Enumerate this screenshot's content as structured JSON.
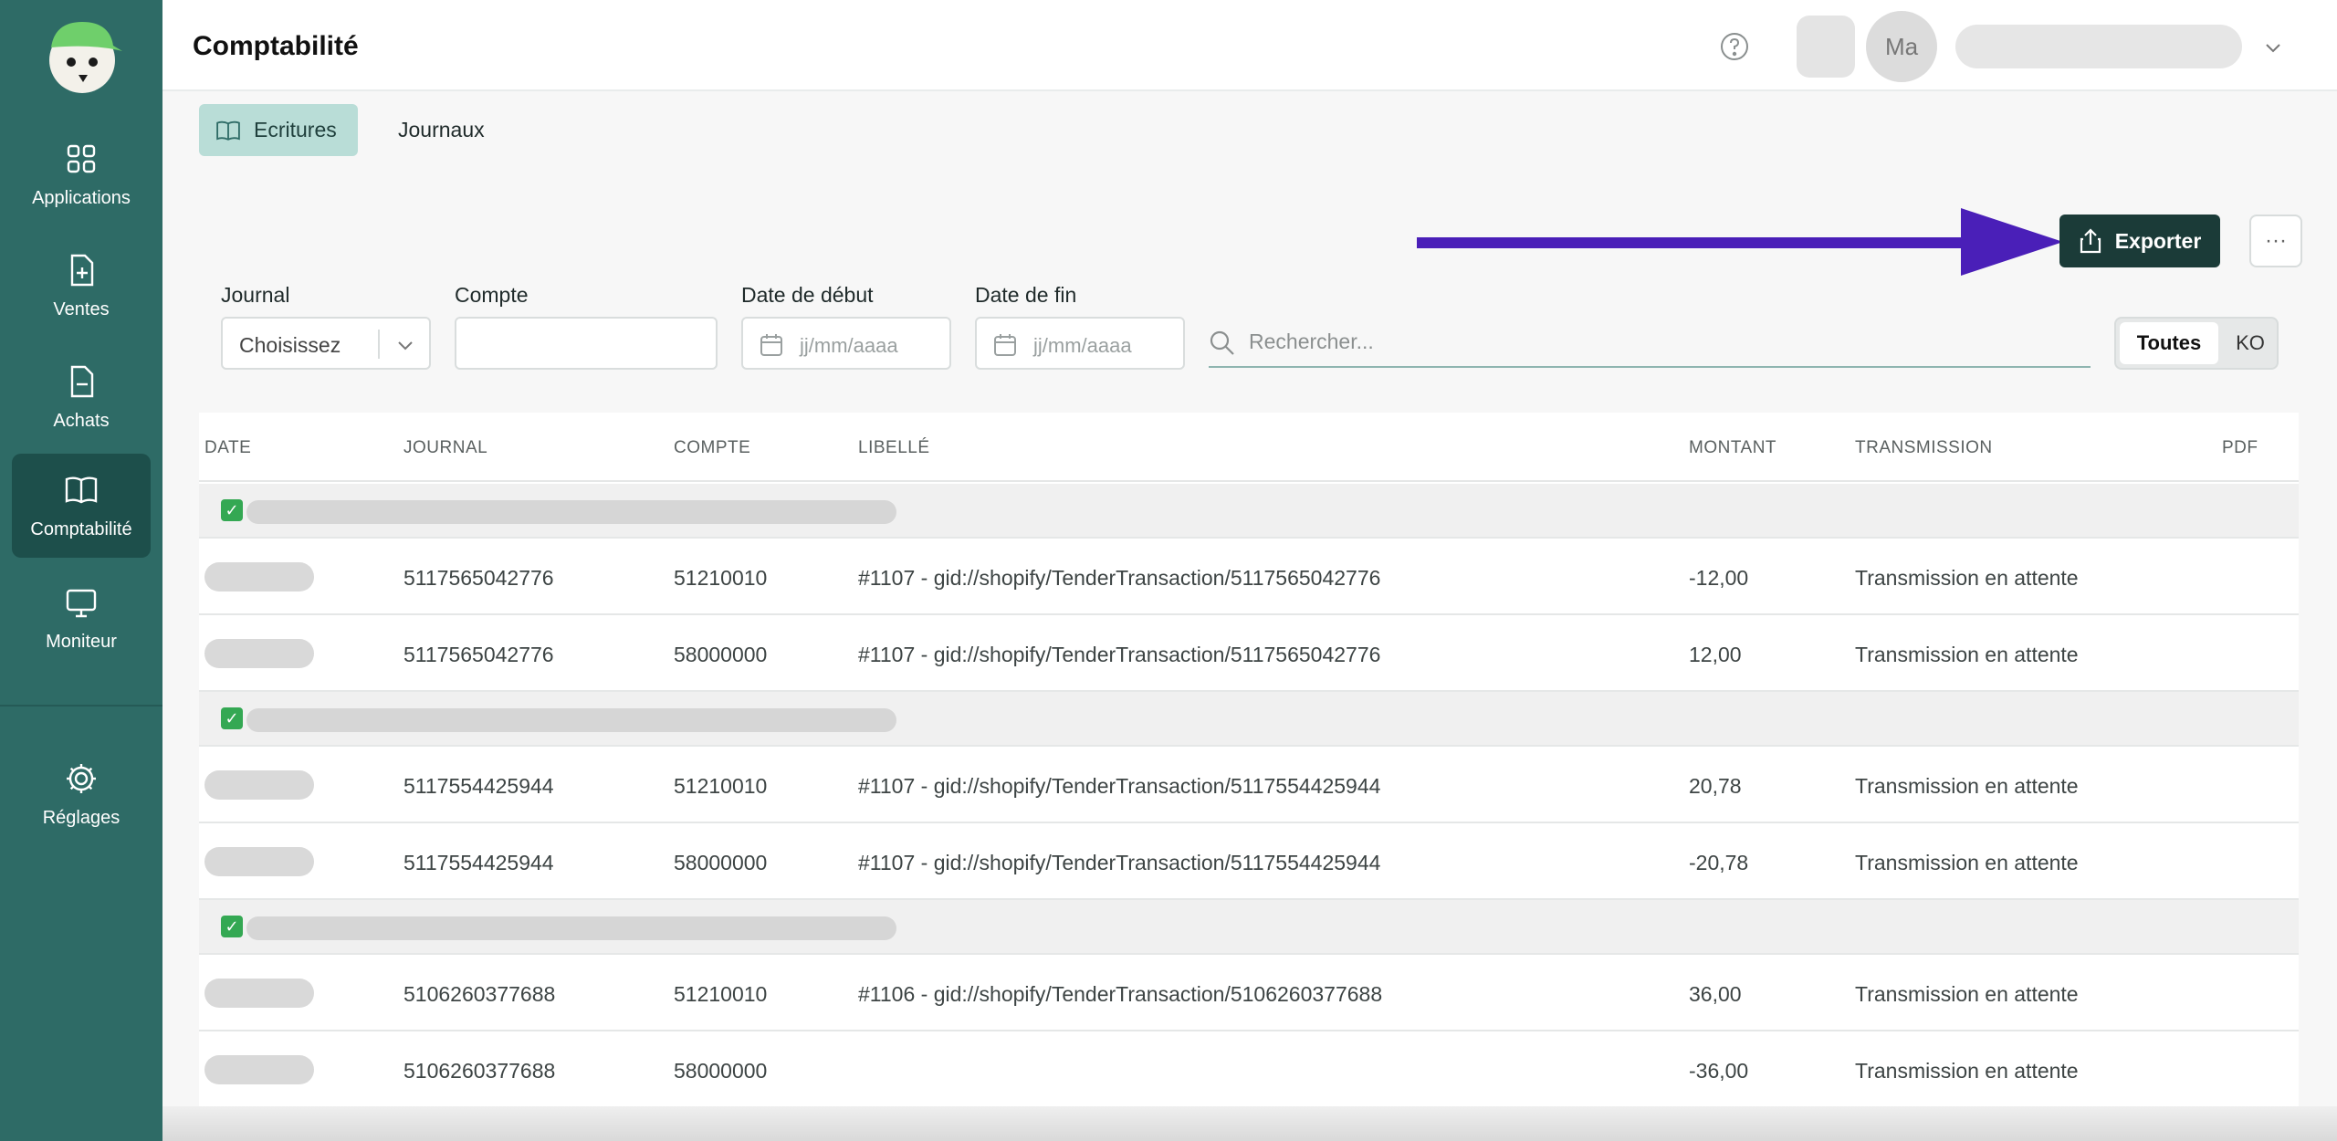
{
  "app": {
    "title": "Comptabilité"
  },
  "sidebar": {
    "items": [
      {
        "label": "Applications",
        "icon": "grid-icon"
      },
      {
        "label": "Ventes",
        "icon": "file-plus-icon"
      },
      {
        "label": "Achats",
        "icon": "file-minus-icon"
      },
      {
        "label": "Comptabilité",
        "icon": "book-icon",
        "active": true
      },
      {
        "label": "Moniteur",
        "icon": "monitor-icon"
      },
      {
        "label": "Réglages",
        "icon": "gear-icon"
      }
    ]
  },
  "header": {
    "avatar_initials": "Ma"
  },
  "tabs": [
    {
      "label": "Ecritures",
      "active": true
    },
    {
      "label": "Journaux",
      "active": false
    }
  ],
  "actions": {
    "export_label": "Exporter",
    "more_label": "···"
  },
  "filters": {
    "journal_label": "Journal",
    "journal_value": "Choisissez",
    "compte_label": "Compte",
    "compte_value": "",
    "date_debut_label": "Date de début",
    "date_debut_placeholder": "jj/mm/aaaa",
    "date_fin_label": "Date de fin",
    "date_fin_placeholder": "jj/mm/aaaa",
    "search_placeholder": "Rechercher...",
    "segment": [
      "Toutes",
      "KO"
    ]
  },
  "table": {
    "headers": [
      "DATE",
      "JOURNAL",
      "COMPTE",
      "LIBELLÉ",
      "MONTANT",
      "TRANSMISSION",
      "PDF"
    ],
    "rows": [
      {
        "journal": "5117565042776",
        "compte": "51210010",
        "libelle": "#1107 - gid://shopify/TenderTransaction/5117565042776",
        "montant": "-12,00",
        "transmission": "Transmission en attente"
      },
      {
        "journal": "5117565042776",
        "compte": "58000000",
        "libelle": "#1107 - gid://shopify/TenderTransaction/5117565042776",
        "montant": "12,00",
        "transmission": "Transmission en attente"
      },
      {
        "journal": "5117554425944",
        "compte": "51210010",
        "libelle": "#1107 - gid://shopify/TenderTransaction/5117554425944",
        "montant": "20,78",
        "transmission": "Transmission en attente"
      },
      {
        "journal": "5117554425944",
        "compte": "58000000",
        "libelle": "#1107 - gid://shopify/TenderTransaction/5117554425944",
        "montant": "-20,78",
        "transmission": "Transmission en attente"
      },
      {
        "journal": "5106260377688",
        "compte": "51210010",
        "libelle": "#1106 - gid://shopify/TenderTransaction/5106260377688",
        "montant": "36,00",
        "transmission": "Transmission en attente"
      },
      {
        "journal": "5106260377688",
        "compte": "58000000",
        "libelle": "",
        "montant": "-36,00",
        "transmission": "Transmission en attente"
      }
    ]
  },
  "colors": {
    "sidebar": "#2e6b66",
    "accent": "#1b3b38",
    "arrow": "#4a1fb8",
    "active_tab": "#b9ddd7"
  }
}
